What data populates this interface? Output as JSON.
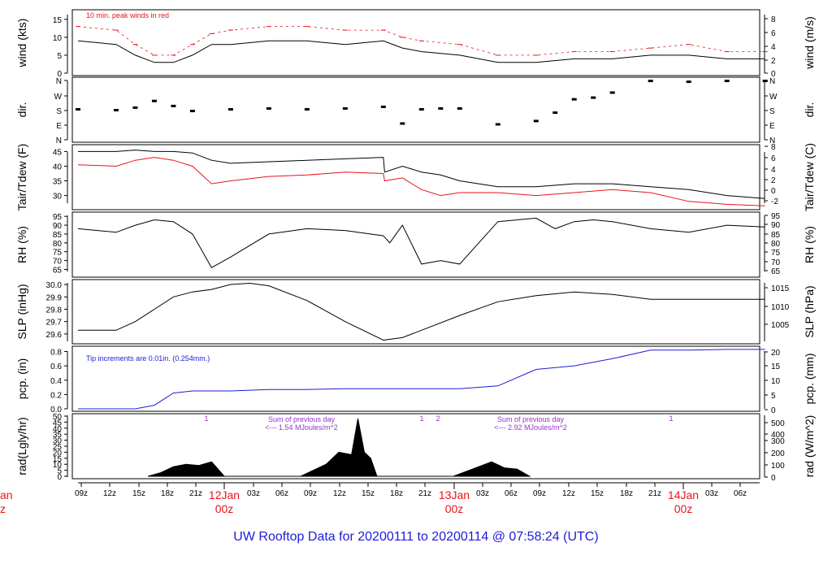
{
  "title": "UW Rooftop Data for 20200111  to  20200114 @ 07:58:24  (UTC)",
  "colors": {
    "obs": "#000000",
    "peak": "#e8141b",
    "pcp": "#1c1cd8",
    "note": "#9932cc",
    "title": "#1c1cd8",
    "day": "#e8141b"
  },
  "time_axis": {
    "hour_labels": [
      "09z",
      "12z",
      "15z",
      "18z",
      "21z",
      "03z",
      "06z",
      "09z",
      "12z",
      "15z",
      "18z",
      "21z",
      "03z",
      "06z",
      "09z",
      "12z",
      "15z",
      "18z",
      "21z",
      "03z",
      "06z"
    ],
    "day_labels": [
      {
        "date": "12Jan",
        "hour": "00z"
      },
      {
        "date": "13Jan",
        "hour": "00z"
      },
      {
        "date": "14Jan",
        "hour": "00z"
      }
    ],
    "cut_label": {
      "date": "an",
      "hour": "z"
    }
  },
  "chart_data": [
    {
      "type": "line",
      "panel": "wind",
      "ylabel": "wind (kts)",
      "ylabel_right": "wind (m/s)",
      "ylim": [
        0,
        17
      ],
      "yticks": [
        0,
        5,
        10,
        15
      ],
      "yticks_right": [
        0,
        2,
        4,
        6,
        8
      ],
      "annotation": "10 min. peak winds in red",
      "series": [
        {
          "x_hours": [
            0,
            6,
            9,
            12,
            15,
            18,
            21,
            24,
            30,
            36,
            42,
            48,
            51,
            54,
            60,
            66,
            72,
            78,
            84,
            90,
            96,
            102,
            108
          ],
          "values": [
            9,
            8,
            5,
            3,
            3,
            5,
            8,
            8,
            9,
            9,
            8,
            9,
            7,
            6,
            5,
            3,
            3,
            4,
            4,
            5,
            5,
            4,
            4
          ]
        },
        {
          "x_hours": [
            0,
            6,
            9,
            12,
            15,
            18,
            21,
            24,
            30,
            36,
            42,
            48,
            51,
            54,
            60,
            66,
            72,
            78,
            84,
            90,
            96,
            102,
            108
          ],
          "values": [
            13,
            12,
            8,
            5,
            5,
            8,
            11,
            12,
            13,
            13,
            12,
            12,
            10,
            9,
            8,
            5,
            5,
            6,
            6,
            7,
            8,
            6,
            6
          ]
        }
      ]
    },
    {
      "type": "scatter",
      "panel": "dir",
      "ylabel": "dir.",
      "ylabel_right": "dir.",
      "ylim": [
        0,
        360
      ],
      "yticks": [
        "N",
        "E",
        "S",
        "W",
        "N"
      ],
      "series": [
        {
          "x_hours": [
            0,
            6,
            9,
            12,
            15,
            18,
            24,
            30,
            36,
            42,
            48,
            51,
            54,
            57,
            60,
            66,
            72,
            75,
            78,
            81,
            84,
            90,
            96,
            102,
            108
          ],
          "values": [
            180,
            175,
            190,
            230,
            200,
            170,
            180,
            185,
            180,
            185,
            195,
            95,
            180,
            185,
            185,
            90,
            110,
            160,
            240,
            250,
            280,
            350,
            345,
            350,
            350
          ]
        }
      ]
    },
    {
      "type": "line",
      "panel": "temp",
      "ylabel": "Tair/Tdew (F)",
      "ylabel_right": "Tair/Tdew (C)",
      "ylim": [
        26,
        46.5
      ],
      "yticks": [
        30,
        35,
        40,
        45
      ],
      "yticks_right": [
        -2,
        0,
        2,
        4,
        6,
        8
      ],
      "series": [
        {
          "x_hours": [
            0,
            6,
            9,
            12,
            15,
            18,
            21,
            24,
            30,
            36,
            42,
            48,
            48.2,
            51,
            54,
            57,
            60,
            66,
            72,
            78,
            84,
            90,
            96,
            102,
            108
          ],
          "values": [
            45,
            45,
            45.5,
            45,
            45,
            44.5,
            42,
            41,
            41.5,
            42,
            42.5,
            43,
            38,
            40,
            38,
            37,
            35,
            33,
            33,
            34,
            34,
            33,
            32,
            30,
            29
          ]
        },
        {
          "x_hours": [
            0,
            6,
            9,
            12,
            15,
            18,
            21,
            24,
            30,
            36,
            42,
            48,
            48.2,
            51,
            54,
            57,
            60,
            66,
            72,
            78,
            84,
            90,
            96,
            102,
            108
          ],
          "values": [
            40.5,
            40,
            42,
            43,
            42,
            40,
            34,
            35,
            36.5,
            37,
            38,
            37.5,
            35,
            36,
            32,
            30,
            31,
            31,
            30,
            31,
            32,
            31,
            28,
            27,
            26.5
          ]
        }
      ]
    },
    {
      "type": "line",
      "panel": "rh",
      "ylabel": "RH (%)",
      "ylabel_right": "RH (%)",
      "ylim": [
        62,
        96
      ],
      "yticks": [
        65,
        70,
        75,
        80,
        85,
        90,
        95
      ],
      "yticks_right": [
        65,
        70,
        75,
        80,
        85,
        90,
        95
      ],
      "series": [
        {
          "x_hours": [
            0,
            6,
            9,
            12,
            15,
            18,
            21,
            24,
            30,
            36,
            42,
            48,
            49,
            51,
            54,
            57,
            60,
            66,
            72,
            75,
            78,
            81,
            84,
            90,
            96,
            102,
            108
          ],
          "values": [
            88,
            86,
            90,
            93,
            92,
            85,
            66,
            72,
            85,
            88,
            87,
            84,
            80,
            90,
            68,
            70,
            68,
            92,
            94,
            88,
            92,
            93,
            92,
            88,
            86,
            90,
            89
          ]
        }
      ]
    },
    {
      "type": "line",
      "panel": "slp",
      "ylabel": "SLP (inHg)",
      "ylabel_right": "SLP (hPa)",
      "ylim": [
        29.54,
        30.02
      ],
      "yticks": [
        29.6,
        29.7,
        29.8,
        29.9,
        30.0
      ],
      "yticks_right": [
        1005,
        1010,
        1015
      ],
      "series": [
        {
          "x_hours": [
            0,
            6,
            9,
            12,
            15,
            18,
            21,
            24,
            27,
            30,
            36,
            42,
            48,
            51,
            54,
            60,
            66,
            72,
            78,
            84,
            90,
            96,
            102,
            108
          ],
          "values": [
            29.63,
            29.63,
            29.7,
            29.8,
            29.9,
            29.94,
            29.96,
            30.0,
            30.01,
            29.99,
            29.87,
            29.7,
            29.55,
            29.57,
            29.63,
            29.75,
            29.86,
            29.91,
            29.94,
            29.92,
            29.88,
            29.88,
            29.88,
            29.88
          ]
        }
      ]
    },
    {
      "type": "area",
      "panel": "pcp",
      "ylabel": "pcp. (in)",
      "ylabel_right": "pcp. (mm)",
      "ylim": [
        0,
        0.84
      ],
      "yticks": [
        0.0,
        0.2,
        0.4,
        0.6,
        0.8
      ],
      "yticks_right": [
        0,
        5,
        10,
        15,
        20
      ],
      "annotation": "Tip increments are 0.01in. (0.254mm.)",
      "series": [
        {
          "x_hours": [
            0,
            9,
            12,
            15,
            18,
            24,
            30,
            36,
            42,
            48,
            54,
            60,
            66,
            72,
            78,
            84,
            90,
            96,
            102,
            108
          ],
          "values": [
            0,
            0,
            0.05,
            0.22,
            0.25,
            0.25,
            0.27,
            0.27,
            0.28,
            0.28,
            0.28,
            0.28,
            0.32,
            0.55,
            0.6,
            0.7,
            0.82,
            0.82,
            0.83,
            0.83
          ]
        }
      ]
    },
    {
      "type": "area",
      "panel": "rad",
      "ylabel": "rad(Lgly/hr)",
      "ylabel_right": "rad (W/m^2)",
      "ylim": [
        0,
        50
      ],
      "yticks": [
        0,
        5,
        10,
        15,
        20,
        25,
        30,
        35,
        40,
        45,
        50
      ],
      "yticks_right": [
        0,
        100,
        200,
        300,
        400,
        500
      ],
      "annotations": [
        "Sum of previous day",
        "<--- 1.54 MJoules/m^2",
        "Sum of previous day",
        "<--- 2.92 MJoules/m^2"
      ],
      "marks": [
        "1",
        "1",
        "2",
        "1"
      ],
      "series": [
        {
          "x_hours": [
            11,
            13,
            15,
            17,
            19,
            21,
            23,
            35,
            37,
            39,
            41,
            43,
            44,
            45,
            46,
            47,
            59,
            61,
            63,
            65,
            67,
            69,
            71
          ],
          "values": [
            0,
            3,
            8,
            10,
            9,
            12,
            0,
            0,
            5,
            10,
            20,
            18,
            48,
            20,
            15,
            0,
            0,
            4,
            8,
            12,
            7,
            6,
            0
          ]
        }
      ]
    }
  ]
}
